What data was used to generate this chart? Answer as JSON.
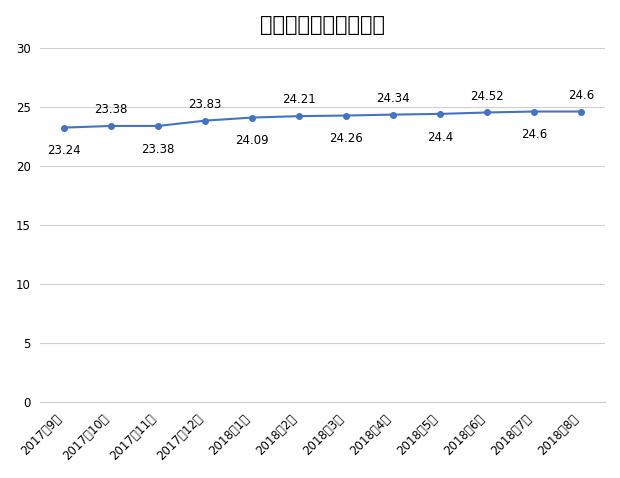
{
  "title": "私募员工数量变化情况",
  "x_labels": [
    "2017年9月",
    "2017年10月",
    "2017年11月",
    "2017年12月",
    "2018年1月",
    "2018年2月",
    "2018年3月",
    "2018年4月",
    "2018年5月",
    "2018年6月",
    "2018年7月",
    "2018年8月"
  ],
  "y_values": [
    23.24,
    23.38,
    23.38,
    23.83,
    24.09,
    24.21,
    24.26,
    24.34,
    24.4,
    24.52,
    24.6,
    24.6
  ],
  "line_color": "#4472C4",
  "marker_color": "#4472C4",
  "marker_style": "o",
  "marker_size": 4,
  "line_width": 1.5,
  "ylim": [
    0,
    30
  ],
  "yticks": [
    0,
    5,
    10,
    15,
    20,
    25,
    30
  ],
  "title_fontsize": 15,
  "label_fontsize": 8.5,
  "annotation_fontsize": 8.5,
  "background_color": "#ffffff",
  "grid_color": "#d0d0d0",
  "annotation_above_indices": [
    1,
    3,
    5,
    7,
    9,
    11
  ],
  "annotation_below_indices": [
    0,
    2,
    4,
    6,
    8,
    10
  ]
}
